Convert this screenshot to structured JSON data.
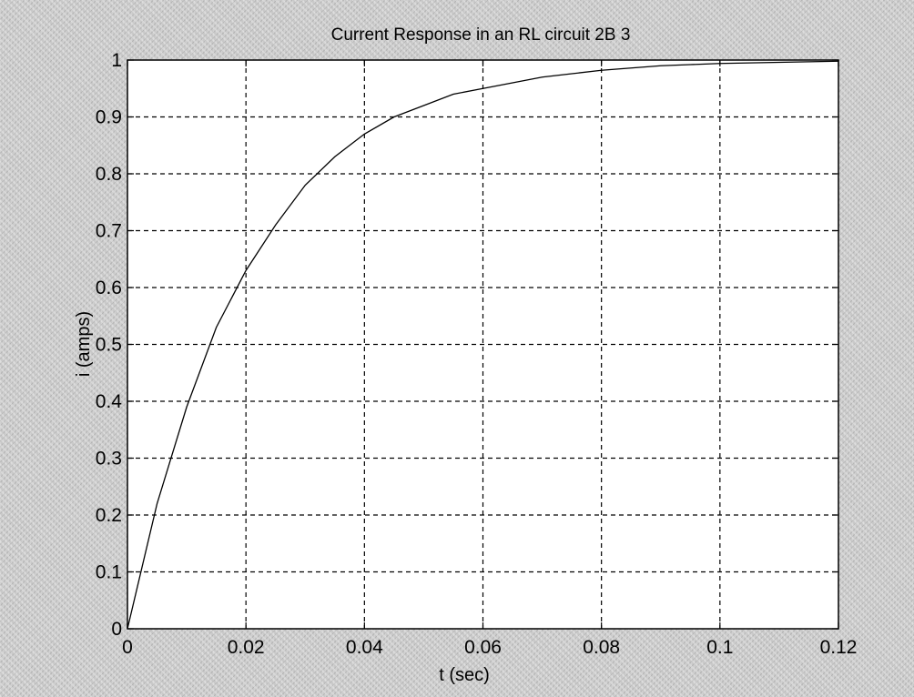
{
  "chart_data": {
    "type": "line",
    "title": "Current Response in an RL circuit 2B 3",
    "xlabel": "t (sec)",
    "ylabel": "i (amps)",
    "xlim": [
      0,
      0.12
    ],
    "ylim": [
      0,
      1
    ],
    "xticks": [
      0,
      0.02,
      0.04,
      0.06,
      0.08,
      0.1,
      0.12
    ],
    "xtick_labels": [
      "0",
      "0.02",
      "0.04",
      "0.06",
      "0.08",
      "0.1",
      "0.12"
    ],
    "yticks": [
      0,
      0.1,
      0.2,
      0.3,
      0.4,
      0.5,
      0.6,
      0.7,
      0.8,
      0.9,
      1
    ],
    "ytick_labels": [
      "0",
      "0.1",
      "0.2",
      "0.3",
      "0.4",
      "0.5",
      "0.6",
      "0.7",
      "0.8",
      "0.9",
      "1"
    ],
    "grid": true,
    "series": [
      {
        "color": "#000000",
        "x": [
          0,
          0.005,
          0.01,
          0.015,
          0.02,
          0.025,
          0.03,
          0.035,
          0.04,
          0.045,
          0.05,
          0.055,
          0.06,
          0.065,
          0.07,
          0.075,
          0.08,
          0.085,
          0.09,
          0.095,
          0.1,
          0.105,
          0.11,
          0.115,
          0.12
        ],
        "y": [
          0,
          0.22,
          0.39,
          0.53,
          0.63,
          0.71,
          0.78,
          0.83,
          0.87,
          0.9,
          0.92,
          0.94,
          0.95,
          0.96,
          0.97,
          0.976,
          0.982,
          0.986,
          0.99,
          0.992,
          0.994,
          0.995,
          0.996,
          0.997,
          0.998
        ]
      }
    ]
  }
}
